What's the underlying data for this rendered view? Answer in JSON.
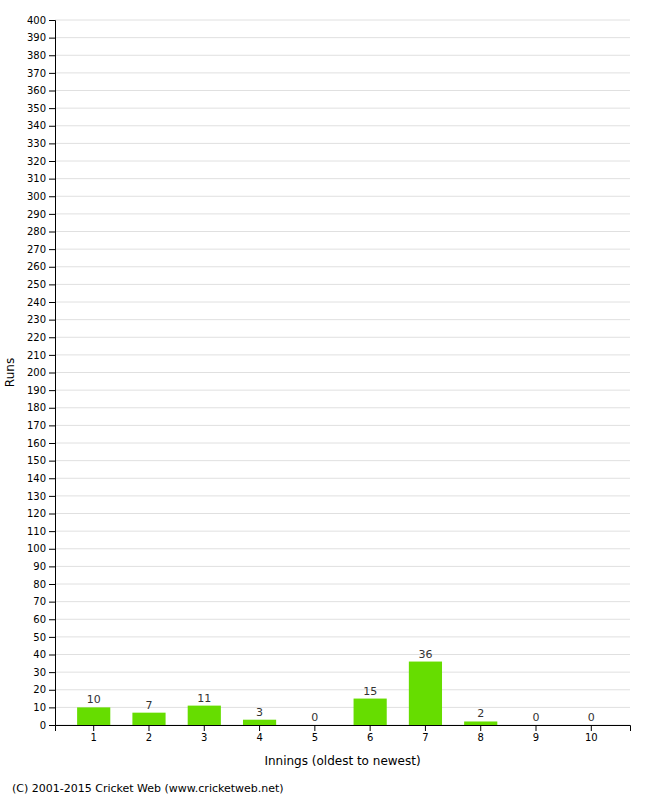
{
  "chart_data": {
    "type": "bar",
    "categories": [
      "1",
      "2",
      "3",
      "4",
      "5",
      "6",
      "7",
      "8",
      "9",
      "10"
    ],
    "values": [
      10,
      7,
      11,
      3,
      0,
      15,
      36,
      2,
      0,
      0
    ],
    "color": "#66dd00",
    "xlabel": "Innings (oldest to newest)",
    "ylabel": "Runs",
    "ylim": [
      0,
      400
    ],
    "yticks": [
      0,
      10,
      20,
      30,
      40,
      50,
      60,
      70,
      80,
      90,
      100,
      110,
      120,
      130,
      140,
      150,
      160,
      170,
      180,
      190,
      200,
      210,
      220,
      230,
      240,
      250,
      260,
      270,
      280,
      290,
      300,
      310,
      320,
      330,
      340,
      350,
      360,
      370,
      380,
      390,
      400
    ],
    "grid": true,
    "data_labels": true,
    "annotations": [
      "(C) 2001-2015 Cricket Web (www.cricketweb.net)"
    ]
  }
}
